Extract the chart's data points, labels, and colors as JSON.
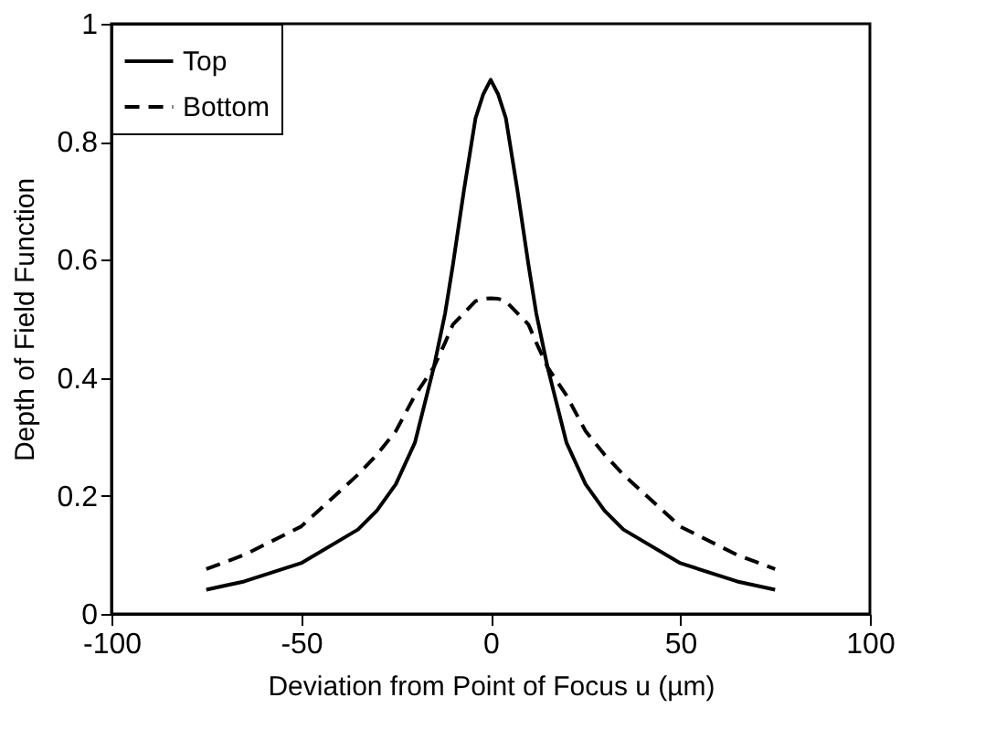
{
  "chart_data": {
    "type": "line",
    "xlabel": "Deviation from Point of Focus u (µm)",
    "ylabel": "Depth of Field Function",
    "x": [
      -75,
      -65,
      -50,
      -35,
      -30,
      -25,
      -20,
      -15,
      -12,
      -10,
      -7,
      -4,
      -2,
      0,
      2,
      4,
      7,
      10,
      12,
      15,
      20,
      25,
      30,
      35,
      50,
      65,
      75
    ],
    "series": [
      {
        "name": "Top",
        "color": "#000000",
        "line_style": "solid",
        "values": [
          0.041,
          0.055,
          0.086,
          0.143,
          0.175,
          0.22,
          0.29,
          0.418,
          0.51,
          0.59,
          0.72,
          0.84,
          0.88,
          0.905,
          0.88,
          0.84,
          0.72,
          0.59,
          0.51,
          0.418,
          0.29,
          0.22,
          0.175,
          0.143,
          0.086,
          0.055,
          0.041
        ]
      },
      {
        "name": "Bottom",
        "color": "#000000",
        "line_style": "dashed",
        "values": [
          0.076,
          0.1,
          0.148,
          0.236,
          0.27,
          0.31,
          0.37,
          0.418,
          0.46,
          0.49,
          0.51,
          0.53,
          0.534,
          0.535,
          0.534,
          0.53,
          0.51,
          0.49,
          0.46,
          0.418,
          0.37,
          0.31,
          0.27,
          0.236,
          0.148,
          0.1,
          0.076
        ]
      }
    ],
    "xlim": [
      -100,
      100
    ],
    "xticks": [
      -100,
      -50,
      0,
      50,
      100
    ],
    "ylim": [
      0,
      1
    ],
    "yticks": [
      {
        "value": 0,
        "label": "0"
      },
      0.2,
      0.4,
      0.6,
      0.8,
      {
        "value": 1,
        "label": "1"
      }
    ],
    "legend": "top left",
    "grid": false
  }
}
